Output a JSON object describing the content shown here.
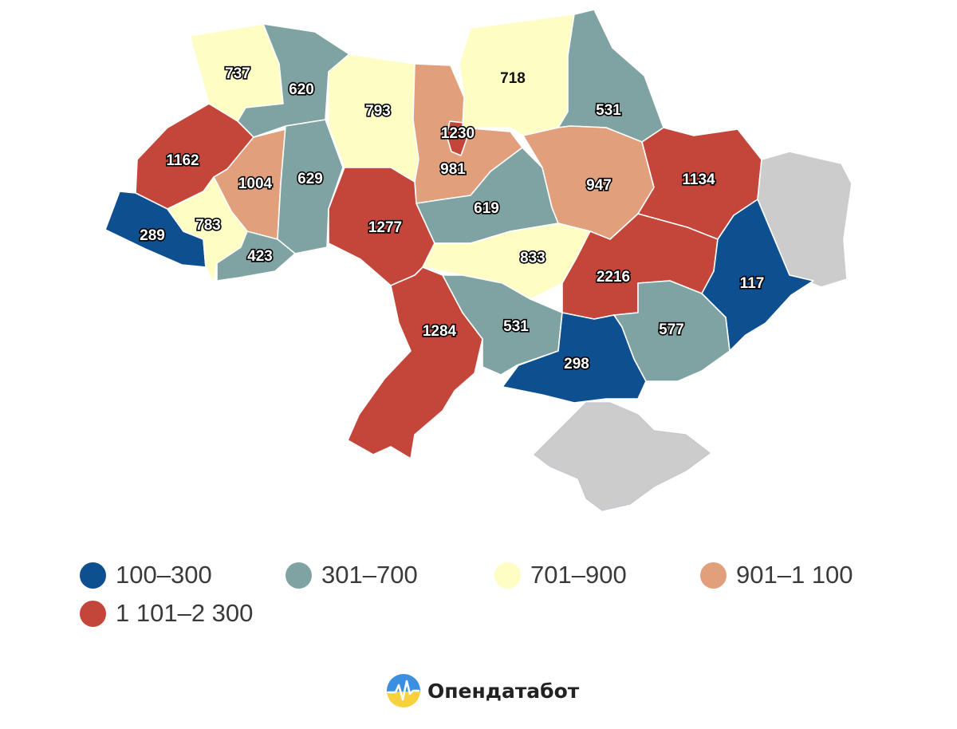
{
  "colors": {
    "bin_100_300": "#0d4f8f",
    "bin_301_700": "#7fa3a2",
    "bin_701_900": "#fefdc4",
    "bin_901_1100": "#e19f7c",
    "bin_1101_2300": "#c4463a",
    "no_data": "#cccccc"
  },
  "regions": [
    {
      "id": "volyn",
      "value": "737",
      "color": "#fefdc4"
    },
    {
      "id": "rivne",
      "value": "620",
      "color": "#7fa3a2"
    },
    {
      "id": "zhytomyr",
      "value": "793",
      "color": "#fefdc4"
    },
    {
      "id": "kyiv-oblast",
      "value": "981",
      "color": "#e19f7c"
    },
    {
      "id": "kyiv-city",
      "value": "1230",
      "color": "#c4463a"
    },
    {
      "id": "chernihiv",
      "value": "718",
      "color": "#fefdc4"
    },
    {
      "id": "sumy",
      "value": "531",
      "color": "#7fa3a2"
    },
    {
      "id": "lviv",
      "value": "1162",
      "color": "#c4463a"
    },
    {
      "id": "ternopil",
      "value": "1004",
      "color": "#e19f7c"
    },
    {
      "id": "khmelnytskyi",
      "value": "629",
      "color": "#7fa3a2"
    },
    {
      "id": "zakarpattia",
      "value": "289",
      "color": "#0d4f8f"
    },
    {
      "id": "ivano-frankivsk",
      "value": "783",
      "color": "#fefdc4"
    },
    {
      "id": "chernivtsi",
      "value": "423",
      "color": "#7fa3a2"
    },
    {
      "id": "vinnytsia",
      "value": "1277",
      "color": "#c4463a"
    },
    {
      "id": "cherkasy",
      "value": "619",
      "color": "#7fa3a2"
    },
    {
      "id": "poltava",
      "value": "947",
      "color": "#e19f7c"
    },
    {
      "id": "kharkiv",
      "value": "1134",
      "color": "#c4463a"
    },
    {
      "id": "kirovohrad",
      "value": "833",
      "color": "#fefdc4"
    },
    {
      "id": "dnipropetrovsk",
      "value": "2216",
      "color": "#c4463a"
    },
    {
      "id": "donetsk",
      "value": "117",
      "color": "#0d4f8f"
    },
    {
      "id": "luhansk",
      "value": "",
      "color": "#cccccc"
    },
    {
      "id": "odesa",
      "value": "1284",
      "color": "#c4463a"
    },
    {
      "id": "mykolaiv",
      "value": "531",
      "color": "#7fa3a2"
    },
    {
      "id": "kherson",
      "value": "298",
      "color": "#0d4f8f"
    },
    {
      "id": "zaporizhzhia",
      "value": "577",
      "color": "#7fa3a2"
    },
    {
      "id": "crimea",
      "value": "",
      "color": "#cccccc"
    }
  ],
  "legend": [
    {
      "label": "100–300",
      "color": "#0d4f8f"
    },
    {
      "label": "301–700",
      "color": "#7fa3a2"
    },
    {
      "label": "701–900",
      "color": "#fefdc4"
    },
    {
      "label": "901–1 100",
      "color": "#e19f7c"
    },
    {
      "label": "1 101–2 300",
      "color": "#c4463a"
    }
  ],
  "brand": {
    "name": "Опендатабот",
    "logo_icon": "opendatabot-logo-icon"
  }
}
